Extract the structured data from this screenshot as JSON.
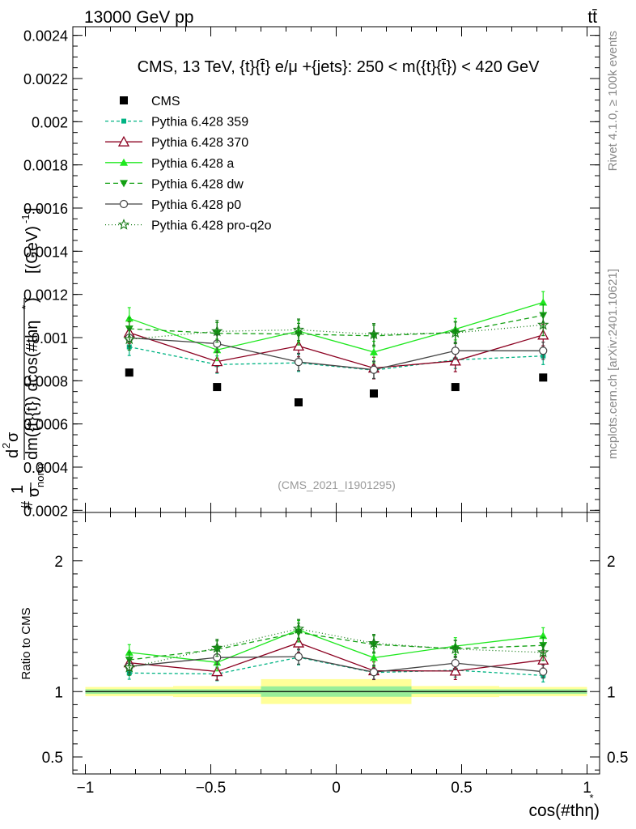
{
  "header": {
    "left": "13000 GeV pp",
    "right": "tt̄"
  },
  "side": {
    "rivet": "Rivet 4.1.0, ≥ 100k events",
    "mcplots": "mcplots.cern.ch [arXiv:2401.10621]"
  },
  "chart_data": {
    "type": "scatter",
    "title": "CMS, 13 TeV, {t}{t̄} e/μ +{jets}: 250 < m({t}{t̄}) < 420 GeV",
    "watermark": "(CMS_2021_I1901295)",
    "xlabel": "cos(#thη*)",
    "ylabel_main": "#frac{1}{σnorm} d²σ / dm({t}{t̄}) dcos(#thη*) [(GeV)⁻¹]",
    "ylabel_main_parts": [
      "#",
      "1",
      "σ",
      "norm",
      "d",
      "2",
      "σ",
      "dm({t}{t̄}) dcos(#thη",
      "*",
      ")",
      "[(GeV)",
      "-1",
      "]"
    ],
    "ylabel_ratio": "Ratio to CMS",
    "xlim": [
      -1.05,
      1.05
    ],
    "ylim_main": [
      0.00019,
      0.00244
    ],
    "ylim_ratio": [
      0.37,
      2.37
    ],
    "x_ticks": [
      -1,
      -0.5,
      0,
      0.5,
      1
    ],
    "x_tick_labels": [
      "−1",
      "−0.5",
      "0",
      "0.5",
      "1"
    ],
    "y_ticks_main": [
      0.0002,
      0.0004,
      0.0006,
      0.0008,
      0.001,
      0.0012,
      0.0014,
      0.0016,
      0.0018,
      0.002,
      0.0022,
      0.0024
    ],
    "y_tick_labels_main": [
      "0.0002",
      "0.0004",
      "0.0006",
      "0.0008",
      "0.001",
      "0.0012",
      "0.0014",
      "0.0016",
      "0.0018",
      "0.002",
      "0.0022",
      "0.0024"
    ],
    "y_ticks_ratio": [
      0.5,
      1,
      2
    ],
    "y_tick_labels_ratio": [
      "0.5",
      "1",
      "2"
    ],
    "x": [
      -0.825,
      -0.475,
      -0.15,
      0.15,
      0.475,
      0.825
    ],
    "bins": [
      [
        -1,
        -0.65
      ],
      [
        -0.65,
        -0.3
      ],
      [
        -0.3,
        0
      ],
      [
        0,
        0.3
      ],
      [
        0.3,
        0.65
      ],
      [
        0.65,
        1
      ]
    ],
    "data": {
      "name": "CMS",
      "values": [
        0.000838,
        0.000771,
        0.0007,
        0.000741,
        0.000771,
        0.000815
      ],
      "band_stat": [
        0.035,
        0.035,
        0.08,
        0.08,
        0.035,
        0.035
      ],
      "band_total": [
        0.07,
        0.085,
        0.19,
        0.19,
        0.085,
        0.07
      ]
    },
    "series": [
      {
        "name": "Pythia 6.428 359",
        "color": "#00b383",
        "dash": "4,3",
        "marker": "square-small",
        "values": [
          0.000957,
          0.000875,
          0.000883,
          0.000849,
          0.000897,
          0.000915
        ],
        "errors": [
          4e-05,
          4e-05,
          4e-05,
          4e-05,
          4e-05,
          4e-05
        ]
      },
      {
        "name": "Pythia 6.428 370",
        "color": "#8b0020",
        "dash": "",
        "marker": "triangle-open",
        "values": [
          0.001023,
          0.000889,
          0.000961,
          0.000859,
          0.000892,
          0.001012
        ],
        "errors": [
          5e-05,
          5e-05,
          5e-05,
          5e-05,
          5e-05,
          5e-05
        ]
      },
      {
        "name": "Pythia 6.428 a",
        "color": "#1ee81e",
        "dash": "",
        "marker": "triangle",
        "values": [
          0.001089,
          0.000943,
          0.00103,
          0.000933,
          0.001039,
          0.001163
        ],
        "errors": [
          5e-05,
          5e-05,
          5e-05,
          5e-05,
          5e-05,
          5e-05
        ]
      },
      {
        "name": "Pythia 6.428 dw",
        "color": "#14a014",
        "dash": "6,4",
        "marker": "triangle-down",
        "values": [
          0.001041,
          0.00102,
          0.001016,
          0.001008,
          0.001024,
          0.001103
        ],
        "errors": [
          5e-05,
          5e-05,
          5e-05,
          5e-05,
          5e-05,
          5e-05
        ]
      },
      {
        "name": "Pythia 6.428 p0",
        "color": "#444444",
        "dash": "",
        "marker": "circle-open",
        "values": [
          0.000999,
          0.000972,
          0.000887,
          0.000851,
          0.000939,
          0.000939
        ],
        "errors": [
          4e-05,
          4e-05,
          4e-05,
          4e-05,
          4e-05,
          4e-05
        ]
      },
      {
        "name": "Pythia 6.428 pro-q2o",
        "color": "#157a15",
        "dash": "1,3",
        "marker": "star",
        "values": [
          0.000992,
          0.001029,
          0.001036,
          0.001015,
          0.001022,
          0.001059
        ],
        "errors": [
          5e-05,
          5e-05,
          5e-05,
          5e-05,
          5e-05,
          5e-05
        ]
      }
    ]
  }
}
